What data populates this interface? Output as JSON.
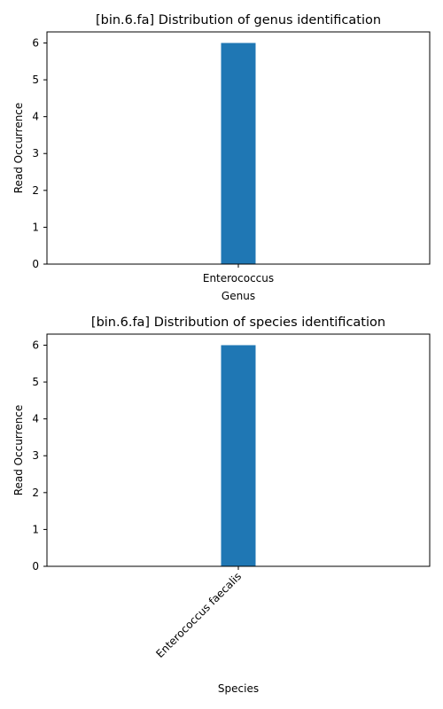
{
  "chart_data": [
    {
      "type": "bar",
      "title": "[bin.6.fa] Distribution of genus identification",
      "xlabel": "Genus",
      "ylabel": "Read Occurrence",
      "categories": [
        "Enterococcus"
      ],
      "values": [
        6
      ],
      "ylim": [
        0,
        6.3
      ],
      "yticks": [
        0,
        1,
        2,
        3,
        4,
        5,
        6
      ],
      "xtick_rotation": 0,
      "bar_color": "#1f77b4",
      "grid": false
    },
    {
      "type": "bar",
      "title": "[bin.6.fa] Distribution of species identification",
      "xlabel": "Species",
      "ylabel": "Read Occurrence",
      "categories": [
        "Enterococcus faecalis"
      ],
      "values": [
        6
      ],
      "ylim": [
        0,
        6.3
      ],
      "yticks": [
        0,
        1,
        2,
        3,
        4,
        5,
        6
      ],
      "xtick_rotation": 45,
      "bar_color": "#1f77b4",
      "grid": false
    }
  ]
}
